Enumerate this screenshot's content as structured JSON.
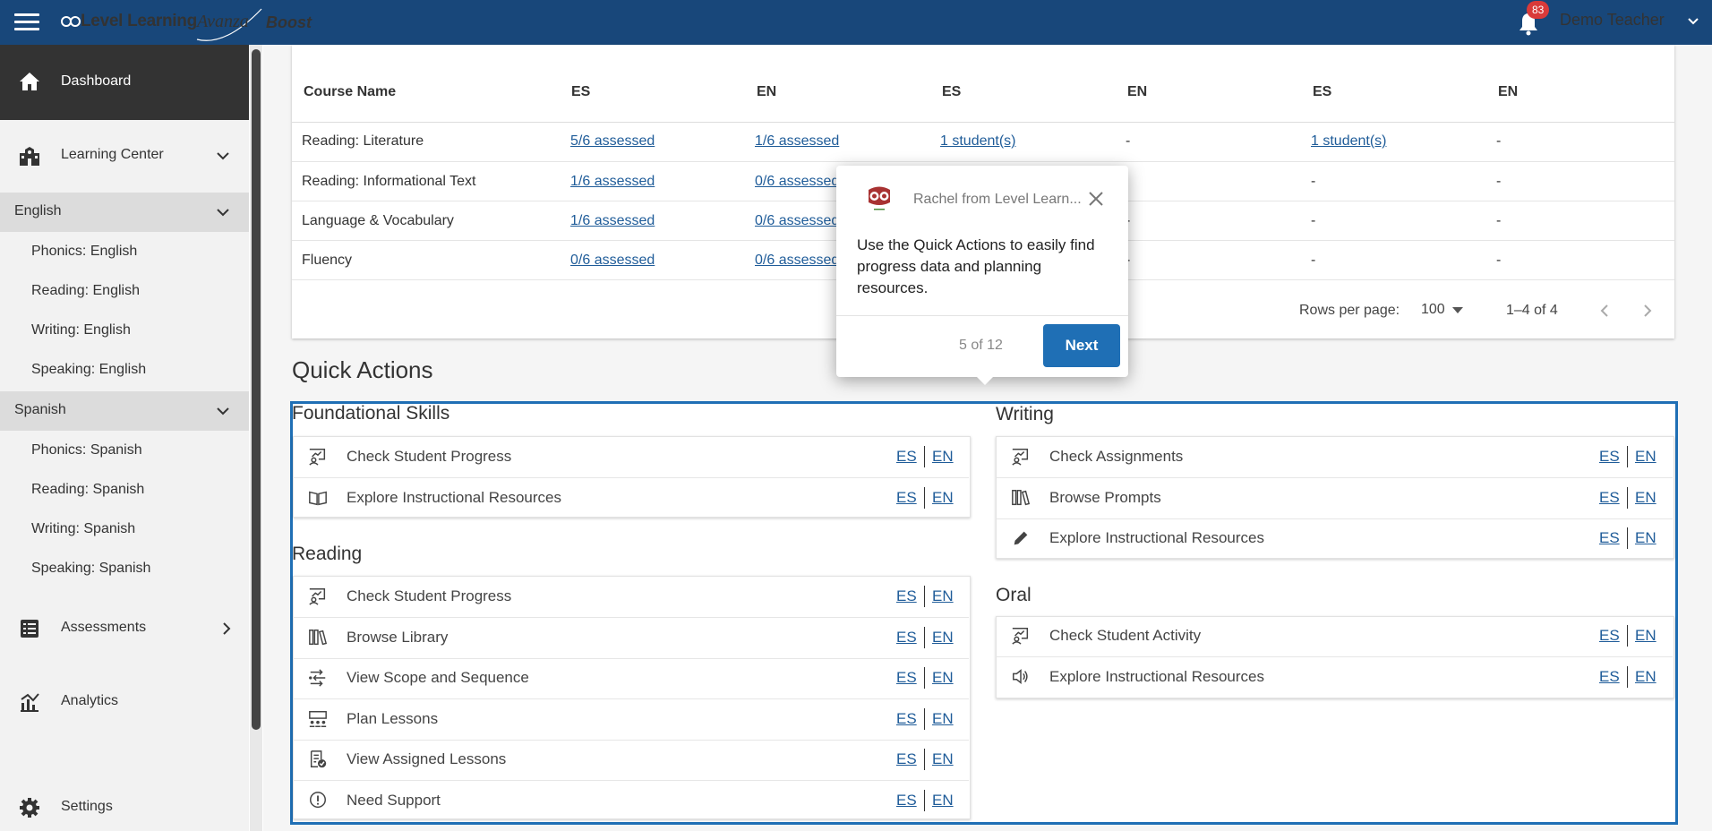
{
  "header": {
    "brand": "Level Learning",
    "avanza": "Avanza",
    "boost": "Boost",
    "notification_count": "83",
    "user_name": "Demo Teacher"
  },
  "sidebar": {
    "dashboard": "Dashboard",
    "learning_center": "Learning Center",
    "english": {
      "label": "English",
      "items": [
        "Phonics: English",
        "Reading: English",
        "Writing: English",
        "Speaking: English"
      ]
    },
    "spanish": {
      "label": "Spanish",
      "items": [
        "Phonics: Spanish",
        "Reading: Spanish",
        "Writing: Spanish",
        "Speaking: Spanish"
      ]
    },
    "assessments": "Assessments",
    "analytics": "Analytics",
    "settings": "Settings"
  },
  "table": {
    "headers": [
      "Course Name",
      "ES",
      "EN",
      "ES",
      "EN",
      "ES",
      "EN"
    ],
    "rows": [
      [
        "Reading: Literature",
        "5/6 assessed",
        "1/6 assessed",
        "1 student(s)",
        "-",
        "1 student(s)",
        "-"
      ],
      [
        "Reading: Informational Text",
        "1/6 assessed",
        "0/6 assessed",
        "",
        "",
        "-",
        "-"
      ],
      [
        "Language & Vocabulary",
        "1/6 assessed",
        "0/6 assessed",
        "",
        "-",
        "-",
        "-"
      ],
      [
        "Fluency",
        "0/6 assessed",
        "0/6 assessed",
        "",
        "-",
        "-",
        "-"
      ]
    ],
    "rows_per_page_label": "Rows per page:",
    "rows_per_page_value": "100",
    "range": "1–4 of 4"
  },
  "quick_actions": {
    "title": "Quick Actions",
    "es": "ES",
    "en": "EN",
    "foundational": {
      "title": "Foundational Skills",
      "items": [
        {
          "label": "Check Student Progress",
          "icon": "progress-chart-icon"
        },
        {
          "label": "Explore Instructional Resources",
          "icon": "open-book-icon"
        }
      ]
    },
    "reading": {
      "title": "Reading",
      "items": [
        {
          "label": "Check Student Progress",
          "icon": "progress-chart-icon"
        },
        {
          "label": "Browse Library",
          "icon": "library-books-icon"
        },
        {
          "label": "View Scope and Sequence",
          "icon": "scope-sequence-icon"
        },
        {
          "label": "Plan Lessons",
          "icon": "plan-lessons-icon"
        },
        {
          "label": "View Assigned Lessons",
          "icon": "assigned-lessons-icon"
        },
        {
          "label": "Need Support",
          "icon": "info-circle-icon"
        }
      ]
    },
    "writing": {
      "title": "Writing",
      "items": [
        {
          "label": "Check Assignments",
          "icon": "progress-chart-icon"
        },
        {
          "label": "Browse Prompts",
          "icon": "library-books-icon"
        },
        {
          "label": "Explore Instructional Resources",
          "icon": "pencil-icon"
        }
      ]
    },
    "oral": {
      "title": "Oral",
      "items": [
        {
          "label": "Check Student Activity",
          "icon": "progress-chart-icon"
        },
        {
          "label": "Explore Instructional Resources",
          "icon": "speaker-icon"
        }
      ]
    }
  },
  "tour_popup": {
    "from": "Rachel from Level Learn...",
    "body": "Use the Quick Actions to easily find progress data and planning resources.",
    "step": "5 of 12",
    "next_label": "Next"
  },
  "colors": {
    "header_bg": "#18477a",
    "accent": "#1f6fb5",
    "link": "#1f5c99"
  }
}
